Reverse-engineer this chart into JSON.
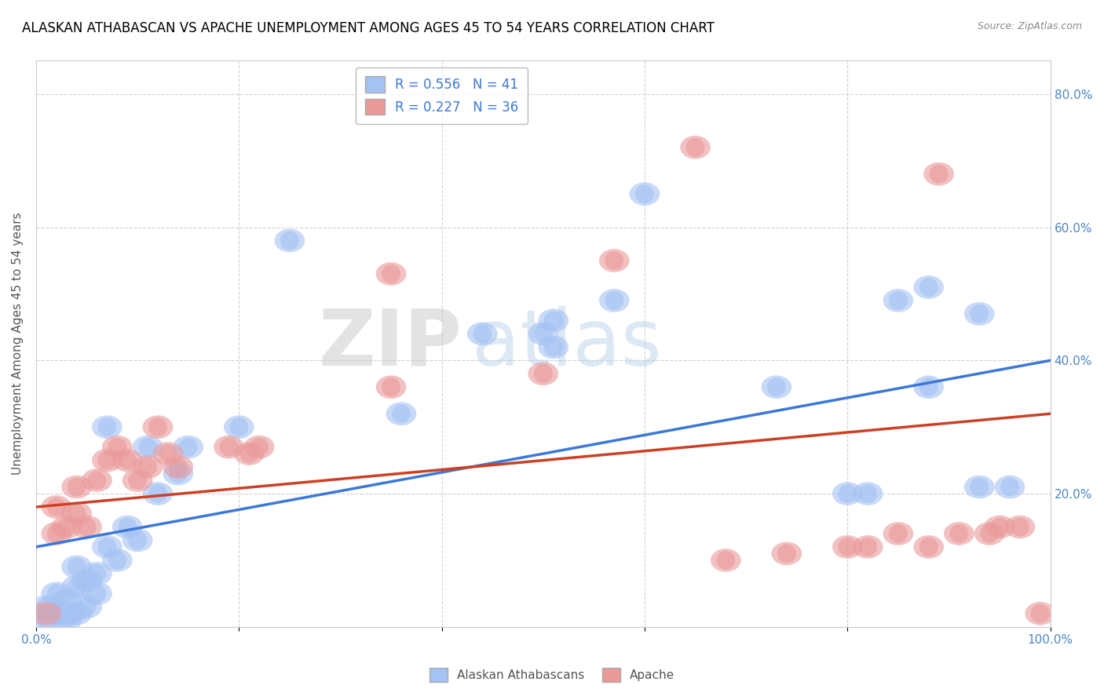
{
  "title": "ALASKAN ATHABASCAN VS APACHE UNEMPLOYMENT AMONG AGES 45 TO 54 YEARS CORRELATION CHART",
  "source": "Source: ZipAtlas.com",
  "ylabel": "Unemployment Among Ages 45 to 54 years",
  "xlim": [
    0,
    1.0
  ],
  "ylim": [
    0,
    0.85
  ],
  "xticks": [
    0.0,
    0.2,
    0.4,
    0.6,
    0.8,
    1.0
  ],
  "xtick_labels": [
    "0.0%",
    "",
    "",
    "",
    "",
    "100.0%"
  ],
  "yticks": [
    0.0,
    0.2,
    0.4,
    0.6,
    0.8
  ],
  "ytick_labels_right": [
    "",
    "20.0%",
    "40.0%",
    "60.0%",
    "80.0%"
  ],
  "blue_color": "#a4c2f4",
  "pink_color": "#ea9999",
  "blue_line_color": "#3c78d8",
  "pink_line_color": "#cc4125",
  "legend_blue_text": "R = 0.556   N = 41",
  "legend_pink_text": "R = 0.227   N = 36",
  "legend_label_blue": "Alaskan Athabascans",
  "legend_label_pink": "Apache",
  "blue_line_y0": 0.12,
  "blue_line_y1": 0.4,
  "pink_line_y0": 0.18,
  "pink_line_y1": 0.32,
  "blue_x": [
    0.01,
    0.01,
    0.02,
    0.02,
    0.03,
    0.03,
    0.04,
    0.04,
    0.04,
    0.05,
    0.05,
    0.06,
    0.06,
    0.07,
    0.08,
    0.09,
    0.1,
    0.11,
    0.12,
    0.14,
    0.2,
    0.36,
    0.44,
    0.5,
    0.51,
    0.51,
    0.57,
    0.6,
    0.73,
    0.8,
    0.82,
    0.85,
    0.88,
    0.88,
    0.93,
    0.93,
    0.96,
    0.25,
    0.15,
    0.07,
    0.03
  ],
  "blue_y": [
    0.01,
    0.03,
    0.02,
    0.05,
    0.02,
    0.04,
    0.02,
    0.06,
    0.09,
    0.03,
    0.07,
    0.05,
    0.08,
    0.12,
    0.1,
    0.15,
    0.13,
    0.27,
    0.2,
    0.23,
    0.3,
    0.32,
    0.44,
    0.44,
    0.42,
    0.46,
    0.49,
    0.65,
    0.36,
    0.2,
    0.2,
    0.49,
    0.51,
    0.36,
    0.21,
    0.47,
    0.21,
    0.58,
    0.27,
    0.3,
    0.01
  ],
  "pink_x": [
    0.01,
    0.02,
    0.02,
    0.03,
    0.04,
    0.04,
    0.05,
    0.06,
    0.07,
    0.08,
    0.09,
    0.1,
    0.11,
    0.12,
    0.13,
    0.14,
    0.19,
    0.21,
    0.22,
    0.35,
    0.35,
    0.5,
    0.57,
    0.65,
    0.68,
    0.74,
    0.8,
    0.82,
    0.85,
    0.88,
    0.89,
    0.91,
    0.94,
    0.95,
    0.97,
    0.99
  ],
  "pink_y": [
    0.02,
    0.14,
    0.18,
    0.15,
    0.17,
    0.21,
    0.15,
    0.22,
    0.25,
    0.27,
    0.25,
    0.22,
    0.24,
    0.3,
    0.26,
    0.24,
    0.27,
    0.26,
    0.27,
    0.36,
    0.53,
    0.38,
    0.55,
    0.72,
    0.1,
    0.11,
    0.12,
    0.12,
    0.14,
    0.12,
    0.68,
    0.14,
    0.14,
    0.15,
    0.15,
    0.02
  ],
  "watermark_zip": "ZIP",
  "watermark_atlas": "atlas",
  "background_color": "#ffffff",
  "grid_color": "#cccccc",
  "title_fontsize": 12,
  "axis_label_fontsize": 11,
  "tick_fontsize": 11,
  "tick_color": "#4a86c8",
  "legend_fontsize": 12
}
